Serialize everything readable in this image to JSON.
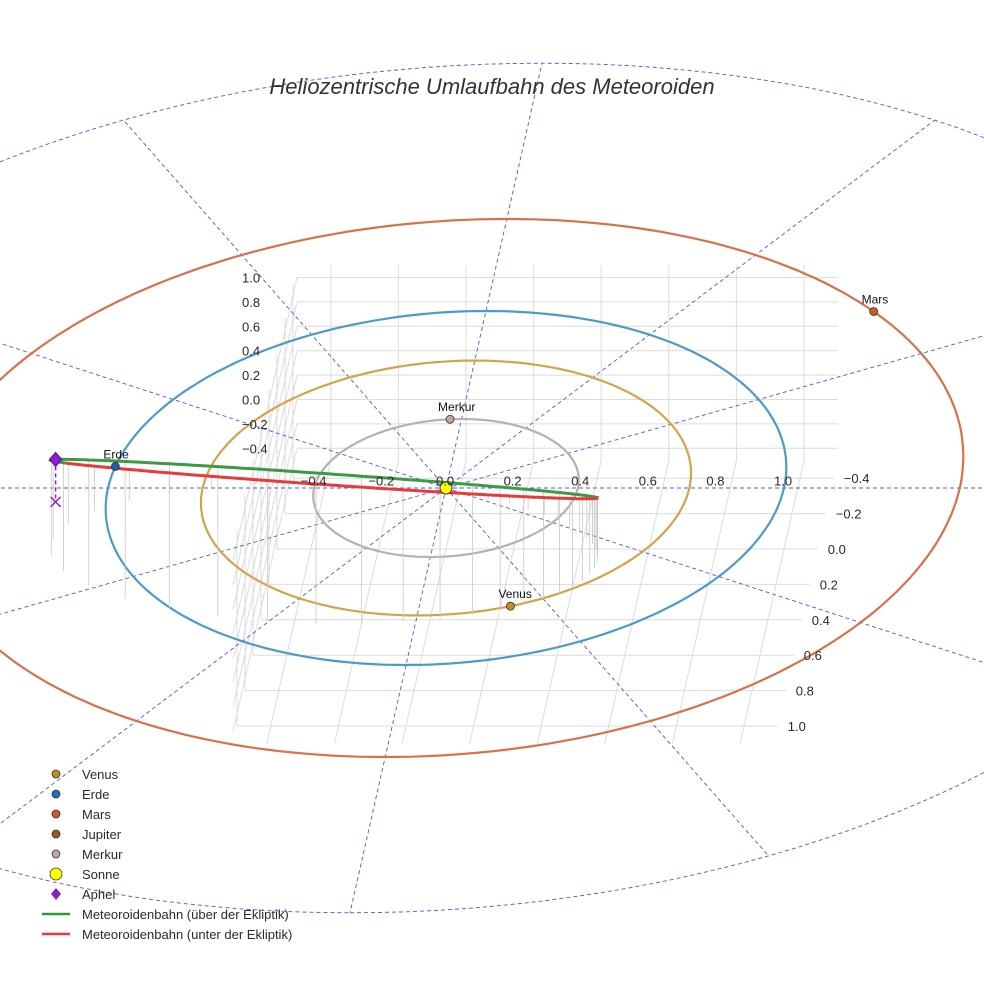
{
  "chart_data": {
    "type": "scatter3d",
    "title": "Heliozentrische Umlaufbahn des Meteoroiden",
    "axes": {
      "x": {
        "range": [
          -0.5,
          1.1
        ],
        "ticks": [
          -0.4,
          -0.2,
          0.0,
          0.2,
          0.4,
          0.6,
          0.8,
          1.0
        ],
        "tick_labels": [
          "−0.4",
          "−0.2",
          "0.0",
          "0.2",
          "0.4",
          "0.6",
          "0.8",
          "1.0"
        ]
      },
      "y": {
        "range": [
          -0.5,
          1.1
        ],
        "ticks": [
          -0.4,
          -0.2,
          0.0,
          0.2,
          0.4,
          0.6,
          0.8,
          1.0
        ],
        "tick_labels": [
          "−0.4",
          "−0.2",
          "0.0",
          "0.2",
          "0.4",
          "0.6",
          "0.8",
          "1.0"
        ]
      },
      "z": {
        "range": [
          -0.5,
          1.1
        ],
        "ticks": [
          -0.4,
          -0.2,
          0.0,
          0.2,
          0.4,
          0.6,
          0.8,
          1.0
        ],
        "tick_labels": [
          "−0.4",
          "−0.2",
          "0.0",
          "0.2",
          "0.4",
          "0.6",
          "0.8",
          "1.0"
        ]
      },
      "grid": true
    },
    "orbits": [
      {
        "name": "Merkur",
        "radius": 0.39,
        "color": "#b8b0b0"
      },
      {
        "name": "Venus",
        "radius": 0.72,
        "color": "#d4a347"
      },
      {
        "name": "Erde",
        "radius": 1.0,
        "color": "#4a9cc8"
      },
      {
        "name": "Mars",
        "radius": 1.52,
        "color": "#d9704a"
      }
    ],
    "bodies": [
      {
        "name": "Merkur",
        "label": "Merkur",
        "angle_deg": 185,
        "radius": 0.39,
        "color": "#c2a3a0"
      },
      {
        "name": "Venus",
        "label": "Venus",
        "angle_deg": 22,
        "radius": 0.72,
        "color": "#c98a22"
      },
      {
        "name": "Erde",
        "label": "Erde",
        "angle_deg": 263,
        "radius": 1.0,
        "color": "#1f5fa8"
      },
      {
        "name": "Mars",
        "label": "Mars",
        "angle_deg": 131,
        "radius": 1.52,
        "color": "#d0582a"
      }
    ],
    "sun": {
      "name": "Sonne",
      "x": 0,
      "y": 0,
      "z": 0,
      "color": "#ffff00"
    },
    "aphel": {
      "name": "Aphel",
      "color": "#8a20c8"
    },
    "meteoroid": {
      "above_name": "Meteoroidenbahn (über der Ekliptik)",
      "below_name": "Meteoroidenbahn (unter der Ekliptik)",
      "above_color": "#3c9a45",
      "below_color": "#e8393b",
      "perihelion": 0.45,
      "aphelion": 1.2,
      "inclination_deg": 58,
      "node_angle_deg": 263,
      "peri_angle_deg": 200
    },
    "reference_circles": [
      1.0,
      2.4
    ],
    "legend": [
      {
        "name": "Venus",
        "symbol": "dot",
        "color": "#c98a22"
      },
      {
        "name": "Erde",
        "symbol": "dot",
        "color": "#1f6fb8"
      },
      {
        "name": "Mars",
        "symbol": "dot",
        "color": "#d0582a"
      },
      {
        "name": "Jupiter",
        "symbol": "dot",
        "color": "#a0522d"
      },
      {
        "name": "Merkur",
        "symbol": "dot",
        "color": "#c2a3a0"
      },
      {
        "name": "Sonne",
        "symbol": "sun",
        "color": "#ffff00"
      },
      {
        "name": "Aphel",
        "symbol": "diamond",
        "color": "#8a20c8"
      },
      {
        "name": "Meteoroidenbahn (über der Ekliptik)",
        "symbol": "line",
        "color": "#2e9a3a"
      },
      {
        "name": "Meteoroidenbahn (unter der Ekliptik)",
        "symbol": "line",
        "color": "#e8393b"
      }
    ],
    "legend_position": "bottom-left"
  }
}
